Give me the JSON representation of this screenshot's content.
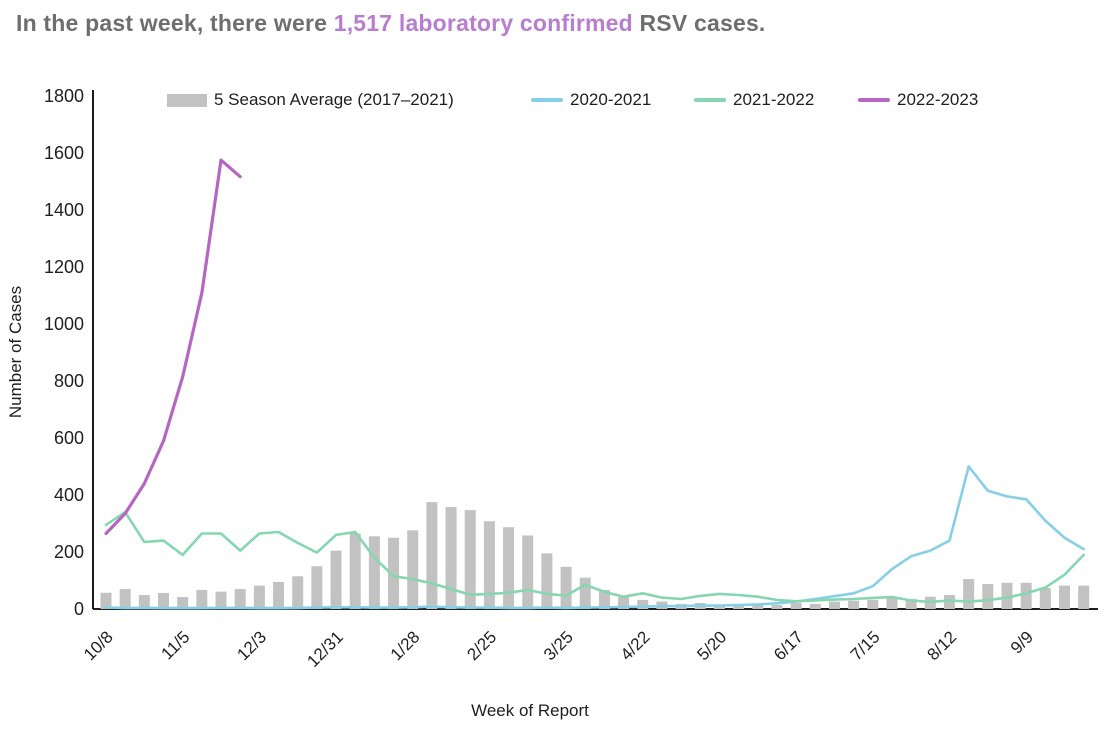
{
  "title": {
    "prefix": "In the past week, there were ",
    "highlight": "1,517 laboratory confirmed",
    "suffix": " RSV cases.",
    "highlight_color": "#b87dce",
    "text_color": "#6e6e6e"
  },
  "chart_data": {
    "type": "bar",
    "subtype": "combo-bar-and-lines",
    "title": "In the past week, there were 1,517 laboratory confirmed RSV cases.",
    "xlabel": "Week of Report",
    "ylabel": "Number of Cases",
    "ylim": [
      0,
      1800
    ],
    "y_ticks": [
      0,
      200,
      400,
      600,
      800,
      1000,
      1200,
      1400,
      1600,
      1800
    ],
    "grid": "off",
    "legend_position": "top",
    "weeks_total": 52,
    "x_tick_labels": [
      "10/8",
      "11/5",
      "12/3",
      "12/31",
      "1/28",
      "2/25",
      "3/25",
      "4/22",
      "5/20",
      "6/17",
      "7/15",
      "8/12",
      "9/9"
    ],
    "x_tick_week_index": [
      0,
      4,
      8,
      12,
      16,
      20,
      24,
      28,
      32,
      36,
      40,
      44,
      48
    ],
    "series": [
      {
        "name": "5 Season Average (2017–2021)",
        "type": "bar",
        "color": "#c2c2c2",
        "values": [
          57,
          70,
          49,
          56,
          42,
          67,
          61,
          70,
          82,
          95,
          115,
          150,
          205,
          265,
          255,
          250,
          276,
          375,
          358,
          347,
          308,
          287,
          258,
          195,
          148,
          110,
          67,
          42,
          32,
          26,
          18,
          21,
          14,
          14,
          17,
          14,
          21,
          18,
          26,
          29,
          32,
          39,
          35,
          43,
          49,
          105,
          88,
          92,
          92,
          74,
          82,
          82
        ]
      },
      {
        "name": "2020-2021",
        "type": "line",
        "color": "#85cfe7",
        "values": [
          5,
          4,
          4,
          3,
          3,
          3,
          4,
          4,
          3,
          3,
          4,
          5,
          6,
          6,
          5,
          5,
          6,
          8,
          6,
          5,
          5,
          4,
          4,
          5,
          4,
          5,
          6,
          7,
          8,
          10,
          10,
          12,
          12,
          14,
          16,
          20,
          26,
          35,
          45,
          55,
          80,
          140,
          185,
          205,
          240,
          500,
          415,
          395,
          385,
          310,
          250,
          210
        ]
      },
      {
        "name": "2021-2022",
        "type": "line",
        "color": "#85d6b1",
        "values": [
          295,
          340,
          235,
          240,
          190,
          265,
          265,
          205,
          265,
          270,
          232,
          198,
          260,
          270,
          180,
          115,
          105,
          90,
          70,
          50,
          53,
          57,
          67,
          53,
          47,
          85,
          60,
          43,
          55,
          40,
          35,
          46,
          53,
          49,
          43,
          32,
          27,
          30,
          33,
          35,
          39,
          42,
          30,
          25,
          30,
          26,
          31,
          40,
          55,
          75,
          120,
          190
        ]
      },
      {
        "name": "2022-2023",
        "type": "line",
        "color": "#b566c3",
        "values": [
          265,
          335,
          440,
          590,
          815,
          1110,
          1575,
          1517
        ]
      }
    ]
  },
  "axes": {
    "x_label": "Week of Report",
    "y_label": "Number of Cases",
    "axis_color": "#000000",
    "tick_text_color": "#1f1f1f"
  }
}
